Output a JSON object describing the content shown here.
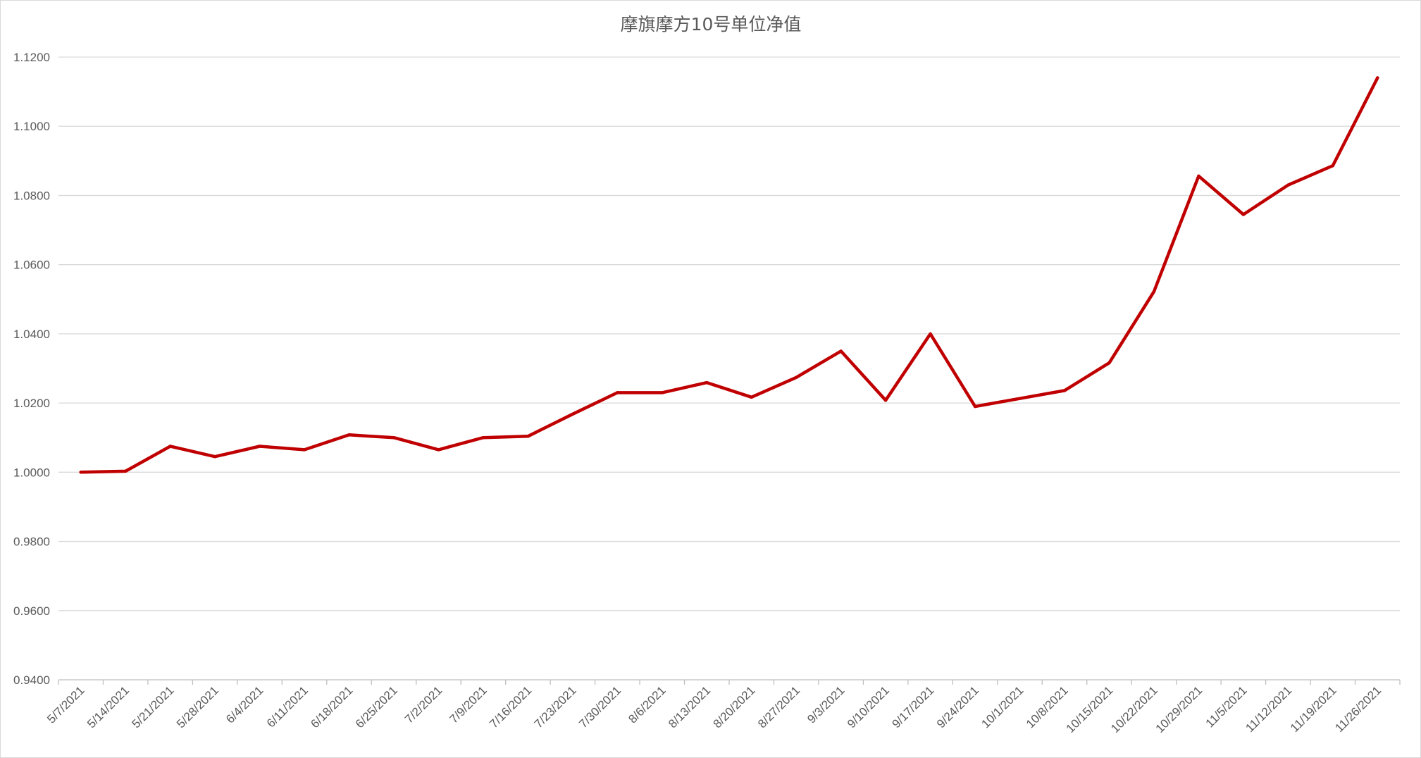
{
  "chart_data": {
    "type": "line",
    "title": "摩旗摩方10号单位净值",
    "xlabel": "",
    "ylabel": "",
    "ylim": [
      0.94,
      1.12
    ],
    "y_ticks": [
      "0.9400",
      "0.9600",
      "0.9800",
      "1.0000",
      "1.0200",
      "1.0400",
      "1.0600",
      "1.0800",
      "1.1000",
      "1.1200"
    ],
    "y_tick_values": [
      0.94,
      0.96,
      0.98,
      1.0,
      1.02,
      1.04,
      1.06,
      1.08,
      1.1,
      1.12
    ],
    "grid": true,
    "legend": "none",
    "categories": [
      "5/7/2021",
      "5/14/2021",
      "5/21/2021",
      "5/28/2021",
      "6/4/2021",
      "6/11/2021",
      "6/18/2021",
      "6/25/2021",
      "7/2/2021",
      "7/9/2021",
      "7/16/2021",
      "7/23/2021",
      "7/30/2021",
      "8/6/2021",
      "8/13/2021",
      "8/20/2021",
      "8/27/2021",
      "9/3/2021",
      "9/10/2021",
      "9/17/2021",
      "9/24/2021",
      "10/1/2021",
      "10/8/2021",
      "10/15/2021",
      "10/22/2021",
      "10/29/2021",
      "11/5/2021",
      "11/12/2021",
      "11/19/2021",
      "11/26/2021"
    ],
    "series": [
      {
        "color": "#c00000",
        "values": [
          1.0,
          1.0003,
          1.0075,
          1.0045,
          1.0075,
          1.0065,
          1.0108,
          1.01,
          1.0065,
          1.01,
          1.0104,
          1.0168,
          1.023,
          1.023,
          1.0259,
          1.0217,
          1.0274,
          1.035,
          1.0208,
          1.04,
          1.019,
          1.0213,
          1.0236,
          1.0316,
          1.0522,
          1.0856,
          1.0745,
          1.083,
          1.0886,
          1.114
        ]
      }
    ]
  }
}
